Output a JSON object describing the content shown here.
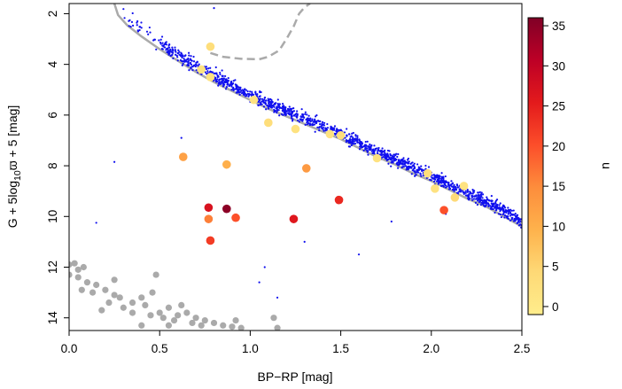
{
  "chart_data": {
    "type": "scatter",
    "xlabel": "BP−RP [mag]",
    "ylabel_parts": {
      "pre": "G + 5log",
      "sub": "10",
      "sym": "ϖ",
      "post": " + 5 [mag]"
    },
    "xlim": [
      0.0,
      2.5
    ],
    "ylim": [
      14.5,
      1.6
    ],
    "y_inverted": true,
    "grid": false,
    "x_ticks": [
      "0.0",
      "0.5",
      "1.0",
      "1.5",
      "2.0",
      "2.5"
    ],
    "y_ticks": [
      "2",
      "4",
      "6",
      "8",
      "10",
      "12",
      "14"
    ],
    "colorbar": {
      "title": "u",
      "min": -1,
      "max": 36,
      "ticks": [
        "0",
        "5",
        "10",
        "15",
        "20",
        "25",
        "30",
        "35"
      ],
      "colors": [
        "#ffed8c",
        "#fed976",
        "#feb24c",
        "#fd8d3c",
        "#fc4e2a",
        "#e31a1c",
        "#bd0026",
        "#800026"
      ]
    },
    "main_sequence_color": "#1010ee",
    "isochrone_color": "#aaaaaa",
    "white_dwarf_color": "#aaaaaa",
    "isochrone": [
      [
        0.25,
        1.6
      ],
      [
        0.27,
        2.05
      ],
      [
        0.32,
        2.45
      ],
      [
        0.4,
        2.9
      ],
      [
        0.5,
        3.4
      ],
      [
        0.6,
        3.85
      ],
      [
        0.7,
        4.3
      ],
      [
        0.8,
        4.7
      ],
      [
        0.9,
        5.05
      ],
      [
        1.0,
        5.4
      ],
      [
        1.1,
        5.75
      ],
      [
        1.2,
        6.05
      ],
      [
        1.3,
        6.35
      ],
      [
        1.4,
        6.65
      ],
      [
        1.5,
        6.95
      ],
      [
        1.6,
        7.3
      ],
      [
        1.7,
        7.65
      ],
      [
        1.8,
        7.95
      ],
      [
        1.9,
        8.3
      ],
      [
        2.0,
        8.6
      ],
      [
        2.1,
        8.95
      ],
      [
        2.2,
        9.3
      ],
      [
        2.3,
        9.6
      ],
      [
        2.4,
        10.0
      ],
      [
        2.5,
        10.4
      ]
    ],
    "giant_branch": [
      [
        0.78,
        3.55
      ],
      [
        0.85,
        3.7
      ],
      [
        0.95,
        3.78
      ],
      [
        1.05,
        3.8
      ],
      [
        1.1,
        3.7
      ],
      [
        1.16,
        3.45
      ],
      [
        1.2,
        3.0
      ],
      [
        1.24,
        2.5
      ],
      [
        1.27,
        2.0
      ],
      [
        1.3,
        1.75
      ],
      [
        1.33,
        1.6
      ]
    ],
    "main_sequence_band": {
      "x_min": 0.5,
      "x_max": 2.5,
      "count": 1400,
      "half_width": 0.38
    },
    "scattered_blue_points": [
      [
        0.25,
        7.85
      ],
      [
        0.15,
        10.25
      ],
      [
        0.62,
        6.9
      ],
      [
        1.05,
        12.6
      ],
      [
        1.08,
        12.0
      ],
      [
        1.15,
        13.2
      ],
      [
        0.8,
        1.78
      ],
      [
        1.78,
        10.2
      ],
      [
        1.6,
        11.5
      ],
      [
        2.08,
        9.9
      ],
      [
        1.3,
        11.0
      ]
    ],
    "highlighted_stars": [
      {
        "x": 0.78,
        "y": 3.3,
        "u": 3
      },
      {
        "x": 0.73,
        "y": 4.2,
        "u": 2
      },
      {
        "x": 0.78,
        "y": 4.5,
        "u": 2
      },
      {
        "x": 1.02,
        "y": 5.4,
        "u": 2
      },
      {
        "x": 1.1,
        "y": 6.3,
        "u": 3
      },
      {
        "x": 1.25,
        "y": 6.55,
        "u": 2
      },
      {
        "x": 1.44,
        "y": 6.75,
        "u": 2
      },
      {
        "x": 1.5,
        "y": 6.8,
        "u": 3
      },
      {
        "x": 1.7,
        "y": 7.7,
        "u": 2
      },
      {
        "x": 1.98,
        "y": 8.3,
        "u": 3
      },
      {
        "x": 2.02,
        "y": 8.9,
        "u": 2
      },
      {
        "x": 2.18,
        "y": 8.8,
        "u": 2
      },
      {
        "x": 2.13,
        "y": 9.25,
        "u": 4
      },
      {
        "x": 0.63,
        "y": 7.65,
        "u": 12
      },
      {
        "x": 0.87,
        "y": 7.95,
        "u": 10
      },
      {
        "x": 1.31,
        "y": 8.1,
        "u": 13
      },
      {
        "x": 0.77,
        "y": 9.65,
        "u": 27
      },
      {
        "x": 0.87,
        "y": 9.7,
        "u": 35
      },
      {
        "x": 0.77,
        "y": 10.1,
        "u": 16
      },
      {
        "x": 0.92,
        "y": 10.05,
        "u": 20
      },
      {
        "x": 1.24,
        "y": 10.1,
        "u": 26
      },
      {
        "x": 1.49,
        "y": 9.35,
        "u": 24
      },
      {
        "x": 2.07,
        "y": 9.75,
        "u": 20
      },
      {
        "x": 0.78,
        "y": 10.95,
        "u": 22
      }
    ],
    "white_dwarfs": [
      [
        0.0,
        11.9
      ],
      [
        0.03,
        11.85
      ],
      [
        0.05,
        12.1
      ],
      [
        0.08,
        12.0
      ],
      [
        0.0,
        12.3
      ],
      [
        0.05,
        12.4
      ],
      [
        0.1,
        12.6
      ],
      [
        0.15,
        12.7
      ],
      [
        0.13,
        13.0
      ],
      [
        0.2,
        12.9
      ],
      [
        0.25,
        13.1
      ],
      [
        0.22,
        13.4
      ],
      [
        0.28,
        13.2
      ],
      [
        0.3,
        13.6
      ],
      [
        0.35,
        13.4
      ],
      [
        0.4,
        13.2
      ],
      [
        0.42,
        13.5
      ],
      [
        0.48,
        12.3
      ],
      [
        0.46,
        13.0
      ],
      [
        0.5,
        13.8
      ],
      [
        0.55,
        13.6
      ],
      [
        0.6,
        13.9
      ],
      [
        0.52,
        14.0
      ],
      [
        0.58,
        14.1
      ],
      [
        0.65,
        13.8
      ],
      [
        0.7,
        14.0
      ],
      [
        0.75,
        14.1
      ],
      [
        0.8,
        14.2
      ],
      [
        0.73,
        14.3
      ],
      [
        0.85,
        14.3
      ],
      [
        0.9,
        14.35
      ],
      [
        0.95,
        14.4
      ],
      [
        0.68,
        14.2
      ],
      [
        0.62,
        13.5
      ],
      [
        0.35,
        13.8
      ],
      [
        0.25,
        12.5
      ],
      [
        0.18,
        13.7
      ],
      [
        0.45,
        13.9
      ],
      [
        0.55,
        14.3
      ],
      [
        1.15,
        14.4
      ],
      [
        1.13,
        14.0
      ],
      [
        0.92,
        14.1
      ],
      [
        0.4,
        14.3
      ],
      [
        0.07,
        12.9
      ]
    ]
  }
}
